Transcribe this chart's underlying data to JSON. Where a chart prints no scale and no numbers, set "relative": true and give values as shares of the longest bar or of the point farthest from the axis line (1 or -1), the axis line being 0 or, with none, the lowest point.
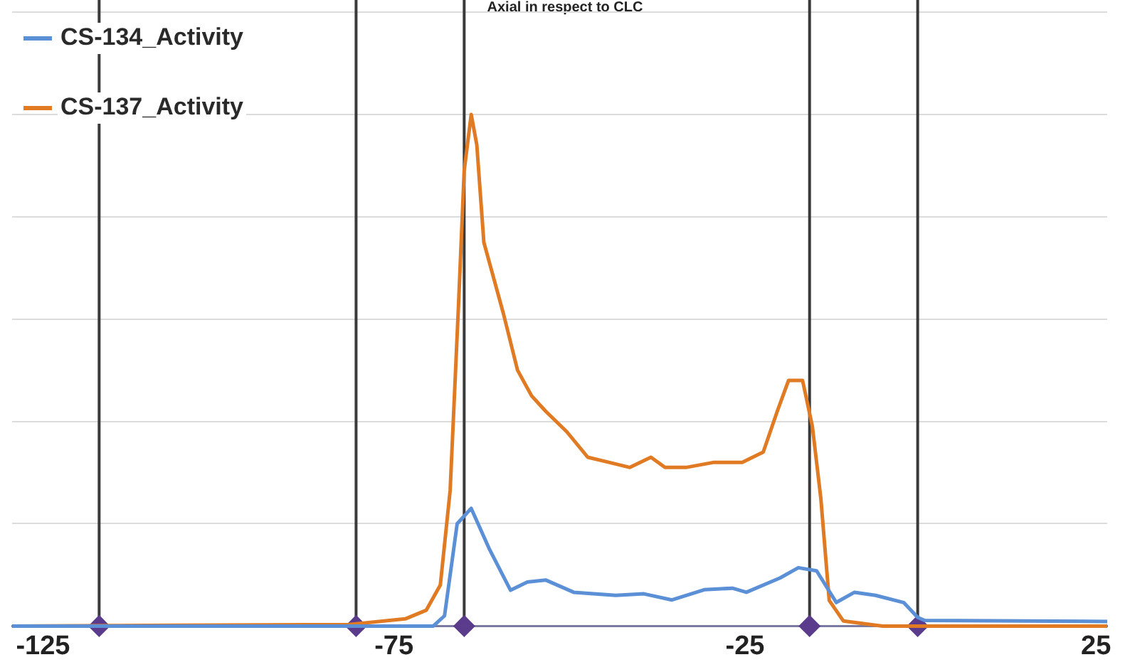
{
  "chart_data": {
    "type": "line",
    "title": "Axial in respect to CLC",
    "relative": true,
    "grid": "y",
    "legend": "top left",
    "marker": "none",
    "line_style": "solid",
    "xlim": [
      -129.4,
      26.6
    ],
    "xticks": [
      -125,
      -75,
      -25,
      25
    ],
    "series": [
      {
        "name": "CS-134_Activity",
        "color": "#5b8fd6",
        "x": [
          -129.4,
          -69.4,
          -67.8,
          -66,
          -64,
          -61.4,
          -58.4,
          -56,
          -53.4,
          -49.4,
          -43.4,
          -39.4,
          -35.4,
          -30.8,
          -26.8,
          -24.8,
          -20,
          -17.4,
          -14.8,
          -12,
          -9.4,
          -6.4,
          -2.4,
          -0.4,
          0.6,
          26.6
        ],
        "values": [
          0,
          0,
          0.02,
          0.2,
          0.23,
          0.15,
          0.07,
          0.086,
          0.09,
          0.066,
          0.06,
          0.063,
          0.051,
          0.071,
          0.074,
          0.066,
          0.094,
          0.114,
          0.108,
          0.046,
          0.066,
          0.06,
          0.046,
          0.017,
          0.011,
          0.009
        ]
      },
      {
        "name": "CS-137_Activity",
        "color": "#e07b24",
        "x": [
          -129.4,
          -81.4,
          -73.4,
          -70.4,
          -68.4,
          -67,
          -65.8,
          -65,
          -64,
          -63.2,
          -62.2,
          -61,
          -59.4,
          -57.4,
          -55.4,
          -53.4,
          -50.4,
          -47.4,
          -44.4,
          -41.4,
          -38.4,
          -36.4,
          -33.4,
          -29.4,
          -25.4,
          -22.4,
          -20.4,
          -18.8,
          -16.8,
          -15.4,
          -14.2,
          -13,
          -11,
          -5.4,
          26.6
        ],
        "values": [
          0,
          0.003,
          0.014,
          0.031,
          0.08,
          0.265,
          0.63,
          0.89,
          1,
          0.94,
          0.75,
          0.69,
          0.61,
          0.5,
          0.45,
          0.42,
          0.38,
          0.33,
          0.32,
          0.31,
          0.33,
          0.31,
          0.31,
          0.32,
          0.32,
          0.34,
          0.42,
          0.48,
          0.48,
          0.39,
          0.25,
          0.05,
          0.01,
          0,
          0
        ]
      },
      {
        "type": "scatter",
        "marker": "diamond",
        "color": "#5b3b8c",
        "x": [
          -117,
          -80.4,
          -65,
          -15.8,
          -0.4
        ],
        "values": [
          0,
          0,
          0,
          0,
          0
        ]
      }
    ],
    "ref_lines": [
      {
        "axis": "x",
        "value": -117,
        "color": "#3a3a3a"
      },
      {
        "axis": "x",
        "value": -80.4,
        "color": "#3a3a3a"
      },
      {
        "axis": "x",
        "value": -65,
        "color": "#3a3a3a"
      },
      {
        "axis": "x",
        "value": -15.8,
        "color": "#3a3a3a"
      },
      {
        "axis": "x",
        "value": -0.4,
        "color": "#3a3a3a"
      }
    ]
  }
}
